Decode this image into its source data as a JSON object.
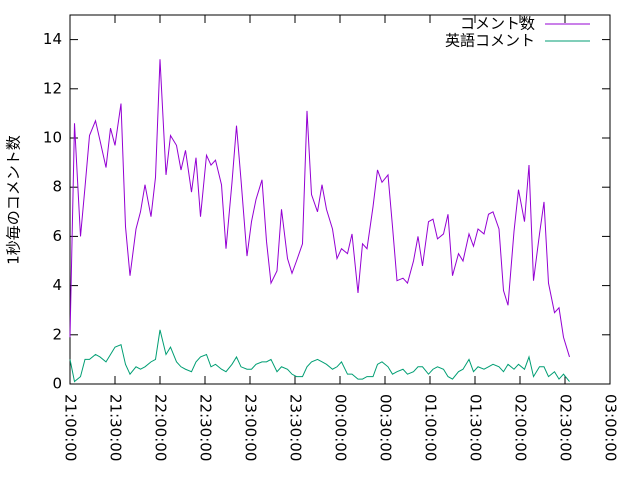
{
  "chart_data": {
    "type": "line",
    "ylabel": "1秒毎のコメント数",
    "x": [
      0,
      3,
      7,
      10,
      13,
      17,
      20,
      24,
      27,
      30,
      34,
      37,
      40,
      44,
      47,
      50,
      54,
      57,
      60,
      64,
      67,
      71,
      74,
      77,
      81,
      84,
      87,
      91,
      94,
      97,
      101,
      104,
      108,
      111,
      114,
      118,
      121,
      124,
      128,
      131,
      134,
      138,
      141,
      145,
      148,
      151,
      155,
      158,
      161,
      165,
      168,
      171,
      175,
      178,
      181,
      185,
      188,
      192,
      195,
      198,
      202,
      205,
      208,
      212,
      215,
      218,
      222,
      225,
      229,
      232,
      235,
      239,
      242,
      245,
      249,
      252,
      255,
      259,
      262,
      266,
      269,
      272,
      276,
      279,
      282,
      286,
      289,
      292,
      296,
      299,
      303,
      306,
      309,
      313,
      316,
      319,
      323,
      326,
      329,
      333
    ],
    "series": [
      {
        "name": "コメント数",
        "color": "#9400d3",
        "values": [
          1.9,
          10.6,
          6,
          8,
          10.1,
          10.7,
          9.9,
          8.8,
          10.4,
          9.7,
          11.4,
          6.4,
          4.4,
          6.3,
          7,
          8.1,
          6.8,
          8.4,
          13.2,
          8.5,
          10.1,
          9.7,
          8.7,
          9.5,
          7.8,
          9.2,
          6.8,
          9.3,
          8.9,
          9.1,
          8.1,
          5.5,
          8.2,
          10.5,
          8.3,
          5.2,
          6.6,
          7.5,
          8.3,
          5.8,
          4.1,
          4.6,
          7.1,
          5.1,
          4.5,
          5,
          5.7,
          11.1,
          7.7,
          7,
          8.1,
          7.1,
          6.3,
          5.1,
          5.5,
          5.3,
          6.1,
          3.7,
          5.7,
          5.5,
          7.2,
          8.7,
          8.2,
          8.5,
          6.4,
          4.2,
          4.3,
          4.1,
          5,
          6,
          4.8,
          6.6,
          6.7,
          5.9,
          6.1,
          6.9,
          4.4,
          5.3,
          5,
          6.1,
          5.6,
          6.3,
          6.1,
          6.9,
          7,
          6.3,
          3.8,
          3.2,
          6.2,
          7.9,
          6.6,
          8.9,
          4.2,
          6.1,
          7.4,
          4.1,
          2.9,
          3.1,
          1.9,
          1.1
        ]
      },
      {
        "name": "英語コメント",
        "color": "#009e73",
        "values": [
          1.0,
          0.1,
          0.3,
          1.0,
          1.0,
          1.2,
          1.1,
          0.9,
          1.2,
          1.5,
          1.6,
          0.8,
          0.4,
          0.7,
          0.6,
          0.7,
          0.9,
          1.0,
          2.2,
          1.2,
          1.5,
          0.9,
          0.7,
          0.6,
          0.5,
          0.9,
          1.1,
          1.2,
          0.7,
          0.8,
          0.6,
          0.5,
          0.8,
          1.1,
          0.7,
          0.6,
          0.6,
          0.8,
          0.9,
          0.9,
          1.0,
          0.5,
          0.7,
          0.6,
          0.4,
          0.3,
          0.3,
          0.7,
          0.9,
          1.0,
          0.9,
          0.8,
          0.6,
          0.7,
          0.9,
          0.4,
          0.4,
          0.2,
          0.2,
          0.3,
          0.3,
          0.8,
          0.9,
          0.7,
          0.4,
          0.5,
          0.6,
          0.4,
          0.5,
          0.7,
          0.7,
          0.4,
          0.6,
          0.7,
          0.6,
          0.3,
          0.2,
          0.5,
          0.6,
          1.0,
          0.5,
          0.7,
          0.6,
          0.7,
          0.8,
          0.7,
          0.5,
          0.8,
          0.6,
          0.8,
          0.6,
          1.1,
          0.3,
          0.7,
          0.7,
          0.3,
          0.5,
          0.2,
          0.4,
          0.1
        ]
      }
    ],
    "xlim": [
      0,
      360
    ],
    "xticks": [
      {
        "value": 0,
        "label": "21:00:00"
      },
      {
        "value": 30,
        "label": "21:30:00"
      },
      {
        "value": 60,
        "label": "22:00:00"
      },
      {
        "value": 90,
        "label": "22:30:00"
      },
      {
        "value": 120,
        "label": "23:00:00"
      },
      {
        "value": 150,
        "label": "23:30:00"
      },
      {
        "value": 180,
        "label": "00:00:00"
      },
      {
        "value": 210,
        "label": "00:30:00"
      },
      {
        "value": 240,
        "label": "01:00:00"
      },
      {
        "value": 270,
        "label": "01:30:00"
      },
      {
        "value": 300,
        "label": "02:00:00"
      },
      {
        "value": 330,
        "label": "02:30:00"
      },
      {
        "value": 360,
        "label": "03:00:00"
      }
    ],
    "ylim": [
      0,
      15
    ],
    "yticks": [
      0,
      2,
      4,
      6,
      8,
      10,
      12,
      14
    ],
    "legend": "top-right"
  }
}
